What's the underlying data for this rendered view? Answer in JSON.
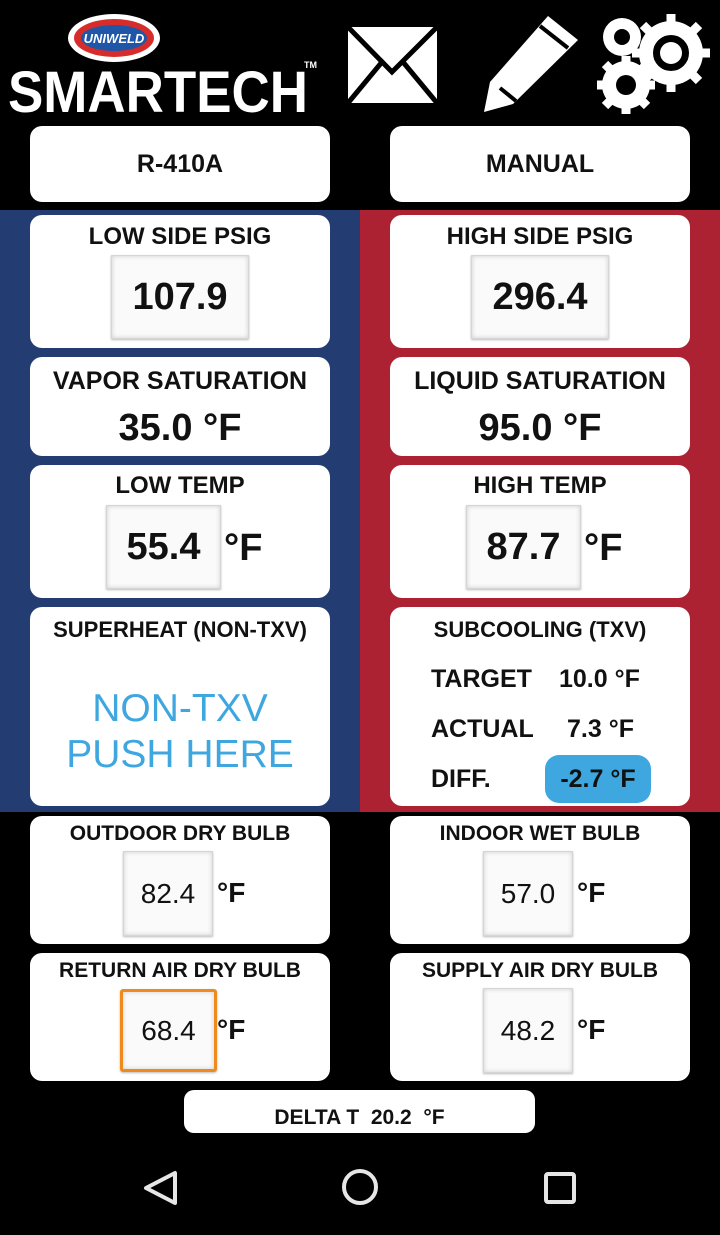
{
  "header": {
    "brand_badge": "UNIWELD",
    "brand": "SMARTECH",
    "trademark": "TM"
  },
  "selectors": [
    "R-410A",
    "MANUAL"
  ],
  "low_side": {
    "pressure_title": "LOW SIDE PSIG",
    "pressure": "107.9",
    "saturation_title": "VAPOR SATURATION",
    "saturation": "35.0",
    "saturation_unit": "°F",
    "temp_title": "LOW TEMP",
    "temp": "55.4",
    "temp_unit": "°F"
  },
  "high_side": {
    "pressure_title": "HIGH SIDE PSIG",
    "pressure": "296.4",
    "saturation_title": "LIQUID SATURATION",
    "saturation": "95.0",
    "saturation_unit": "°F",
    "temp_title": "HIGH TEMP",
    "temp": "87.7",
    "temp_unit": "°F"
  },
  "superheat": {
    "title": "SUPERHEAT (NON-TXV)",
    "line1": "NON-TXV",
    "line2": "PUSH HERE"
  },
  "subcooling": {
    "title": "SUBCOOLING (TXV)",
    "rows": [
      {
        "label": "TARGET",
        "value": "10.0",
        "unit": "°F"
      },
      {
        "label": "ACTUAL",
        "value": "7.3",
        "unit": "°F"
      },
      {
        "label": "DIFF.",
        "value": "-2.7",
        "unit": "°F"
      }
    ]
  },
  "air": [
    {
      "title": "OUTDOOR DRY BULB",
      "value": "82.4",
      "unit": "°F"
    },
    {
      "title": "INDOOR WET BULB",
      "value": "57.0",
      "unit": "°F"
    },
    {
      "title": "RETURN AIR DRY BULB",
      "value": "68.4",
      "unit": "°F"
    },
    {
      "title": "SUPPLY AIR DRY BULB",
      "value": "48.2",
      "unit": "°F"
    }
  ],
  "delta_t": {
    "label": "DELTA T",
    "value": "20.2",
    "unit": "°F"
  }
}
